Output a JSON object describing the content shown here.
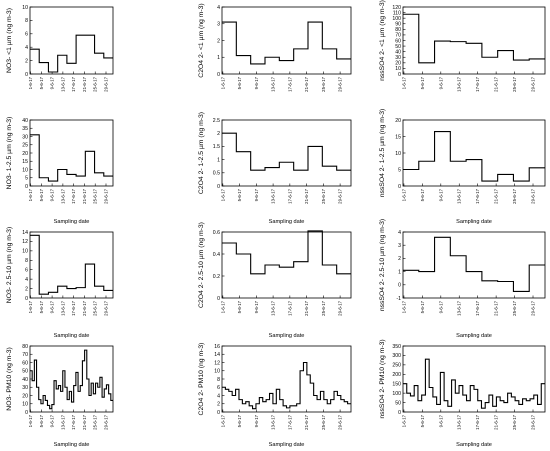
{
  "chart_data": [
    {
      "type": "line",
      "step": true,
      "row": 0,
      "col": 0,
      "ylabel": "NO3- <1 µm (ng m-3)",
      "xlabel": "",
      "ylim": [
        0,
        10
      ],
      "yticks": [
        0,
        2,
        4,
        6,
        8,
        10
      ],
      "x_tick_labels": [
        "1-6-17",
        "5-6-17",
        "9-6-17",
        "13-6-17",
        "17-6-17",
        "21-6-17",
        "25-6-17",
        "29-6-17"
      ],
      "values": [
        3.7,
        1.7,
        0.3,
        2.8,
        1.6,
        5.8,
        5.8,
        3.1,
        2.4
      ]
    },
    {
      "type": "line",
      "step": true,
      "row": 0,
      "col": 1,
      "ylabel": "C2O4 2- <1 µm (ng m-3)",
      "xlabel": "",
      "ylim": [
        0,
        4
      ],
      "yticks": [
        0,
        1,
        2,
        3,
        4
      ],
      "x_tick_labels": [
        "1-6-17",
        "5-6-17",
        "9-6-17",
        "13-6-17",
        "17-6-17",
        "21-6-17",
        "25-6-17",
        "29-6-17"
      ],
      "values": [
        3.1,
        1.1,
        0.6,
        1.0,
        0.8,
        1.5,
        3.1,
        1.5,
        0.9
      ]
    },
    {
      "type": "line",
      "step": true,
      "row": 0,
      "col": 2,
      "ylabel": "nssSO4 2- <1 µm (ng m-3)",
      "xlabel": "",
      "ylim": [
        0,
        120
      ],
      "yticks": [
        0,
        10,
        20,
        30,
        40,
        50,
        60,
        70,
        80,
        90,
        100,
        110,
        120
      ],
      "x_tick_labels": [
        "1-6-17",
        "5-6-17",
        "9-6-17",
        "13-6-17",
        "17-6-17",
        "21-6-17",
        "25-6-17",
        "29-6-17"
      ],
      "values": [
        107,
        20,
        59,
        58,
        55,
        30,
        42,
        25,
        27
      ]
    },
    {
      "type": "line",
      "step": true,
      "row": 1,
      "col": 0,
      "ylabel": "NO3- 1-2.5 µm (ng m-3)",
      "xlabel": "Sampling date",
      "ylim": [
        0,
        40
      ],
      "yticks": [
        0,
        5,
        10,
        15,
        20,
        25,
        30,
        35,
        40
      ],
      "x_tick_labels": [
        "1-6-17",
        "5-6-17",
        "9-6-17",
        "13-6-17",
        "17-6-17",
        "21-6-17",
        "25-6-17",
        "29-6-17"
      ],
      "values": [
        31,
        5,
        3,
        10,
        7,
        6,
        21,
        8,
        6
      ]
    },
    {
      "type": "line",
      "step": true,
      "row": 1,
      "col": 1,
      "ylabel": "C2O4 2- 1-2.5 µm (ng m-3)",
      "xlabel": "Sampling date",
      "ylim": [
        0,
        2.5
      ],
      "yticks": [
        0,
        0.5,
        1.0,
        1.5,
        2.0,
        2.5
      ],
      "x_tick_labels": [
        "1-6-17",
        "5-6-17",
        "9-6-17",
        "13-6-17",
        "17-6-17",
        "21-6-17",
        "25-6-17",
        "29-6-17"
      ],
      "values": [
        2.0,
        1.3,
        0.6,
        0.7,
        0.9,
        0.6,
        1.5,
        0.75,
        0.6
      ]
    },
    {
      "type": "line",
      "step": true,
      "row": 1,
      "col": 2,
      "ylabel": "nssSO4 2- 1-2.5 µm (ng m-3)",
      "xlabel": "Sampling date",
      "ylim": [
        0,
        20
      ],
      "yticks": [
        0,
        5,
        10,
        15,
        20
      ],
      "x_tick_labels": [
        "1-6-17",
        "5-6-17",
        "9-6-17",
        "13-6-17",
        "17-6-17",
        "21-6-17",
        "25-6-17",
        "29-6-17"
      ],
      "values": [
        5,
        7.5,
        16.5,
        7.5,
        8,
        1.5,
        3.5,
        1.5,
        5.5
      ]
    },
    {
      "type": "line",
      "step": true,
      "row": 2,
      "col": 0,
      "ylabel": "NO3- 2.5-10 µm (ng m-3)",
      "xlabel": "Sampling date",
      "ylim": [
        0,
        14
      ],
      "yticks": [
        0,
        2,
        4,
        6,
        8,
        10,
        12,
        14
      ],
      "x_tick_labels": [
        "1-6-17",
        "5-6-17",
        "9-6-17",
        "13-6-17",
        "17-6-17",
        "21-6-17",
        "25-6-17",
        "29-6-17"
      ],
      "values": [
        13.3,
        0.8,
        1.2,
        2.5,
        2.0,
        2.2,
        7.2,
        2.5,
        1.6
      ]
    },
    {
      "type": "line",
      "step": true,
      "row": 2,
      "col": 1,
      "ylabel": "C2O4 2- 2.5-10 µm (ng m-3)",
      "xlabel": "Sampling date",
      "ylim": [
        0,
        0.6
      ],
      "yticks": [
        0,
        0.2,
        0.4,
        0.6
      ],
      "x_tick_labels": [
        "1-6-17",
        "5-6-17",
        "9-6-17",
        "13-6-17",
        "17-6-17",
        "21-6-17",
        "25-6-17",
        "29-6-17"
      ],
      "values": [
        0.5,
        0.4,
        0.22,
        0.3,
        0.28,
        0.33,
        0.61,
        0.3,
        0.22
      ]
    },
    {
      "type": "line",
      "step": true,
      "row": 2,
      "col": 2,
      "ylabel": "nssSO4 2- 2.5-10 µm (ng m-3)",
      "xlabel": "Sampling date",
      "ylim": [
        -1,
        4
      ],
      "yticks": [
        -1,
        0,
        1,
        2,
        3,
        4
      ],
      "x_tick_labels": [
        "1-6-17",
        "5-6-17",
        "9-6-17",
        "13-6-17",
        "17-6-17",
        "21-6-17",
        "25-6-17",
        "29-6-17"
      ],
      "values": [
        1.1,
        1.0,
        3.6,
        2.2,
        1.0,
        0.3,
        0.25,
        -0.5,
        1.5
      ]
    },
    {
      "type": "line",
      "step": true,
      "row": 3,
      "col": 0,
      "ylabel": "NO3- PM10 (ng m-3)",
      "xlabel": "Sampling date",
      "ylim": [
        0,
        80
      ],
      "yticks": [
        0,
        10,
        20,
        30,
        40,
        50,
        60,
        70,
        80
      ],
      "x_tick_labels": [
        "1-6-17",
        "5-6-17",
        "9-6-17",
        "13-6-17",
        "17-6-17",
        "21-6-17",
        "25-6-17",
        "29-6-17"
      ],
      "values": [
        50,
        38,
        63,
        30,
        15,
        10,
        20,
        14,
        8,
        4,
        9,
        38,
        28,
        32,
        25,
        50,
        30,
        15,
        25,
        12,
        32,
        48,
        25,
        32,
        62,
        75,
        40,
        20,
        35,
        22,
        35,
        30,
        42,
        18,
        28,
        33,
        22,
        14
      ]
    },
    {
      "type": "line",
      "step": true,
      "row": 3,
      "col": 1,
      "ylabel": "C2O4 2- PM10 (ng m-3)",
      "xlabel": "Sampling date",
      "ylim": [
        0,
        16
      ],
      "yticks": [
        0,
        2,
        4,
        6,
        8,
        10,
        12,
        14,
        16
      ],
      "x_tick_labels": [
        "1-6-17",
        "5-6-17",
        "9-6-17",
        "13-6-17",
        "17-6-17",
        "21-6-17",
        "25-6-17",
        "29-6-17"
      ],
      "values": [
        6,
        5.5,
        5,
        4,
        5.5,
        3,
        2,
        2.5,
        1.5,
        0.8,
        2,
        3.5,
        2.5,
        3,
        4.5,
        2,
        5.5,
        3,
        1.5,
        1,
        1.5,
        1.5,
        2,
        10,
        12,
        9,
        7,
        4,
        3,
        5,
        3,
        2,
        3,
        5,
        4,
        3,
        2.5,
        2
      ]
    },
    {
      "type": "line",
      "step": true,
      "row": 3,
      "col": 2,
      "ylabel": "nssSO4 2- PM10 (ng m-3)",
      "xlabel": "Sampling date",
      "ylim": [
        0,
        350
      ],
      "yticks": [
        0,
        50,
        100,
        150,
        200,
        250,
        300,
        350
      ],
      "x_tick_labels": [
        "1-6-17",
        "5-6-17",
        "9-6-17",
        "13-6-17",
        "17-6-17",
        "21-6-17",
        "25-6-17",
        "29-6-17"
      ],
      "values": [
        150,
        100,
        85,
        140,
        60,
        90,
        280,
        130,
        80,
        40,
        210,
        60,
        30,
        170,
        100,
        140,
        90,
        60,
        140,
        120,
        60,
        20,
        50,
        90,
        30,
        80,
        60,
        50,
        100,
        80,
        60,
        40,
        70,
        60,
        70,
        90,
        40,
        150
      ]
    }
  ]
}
